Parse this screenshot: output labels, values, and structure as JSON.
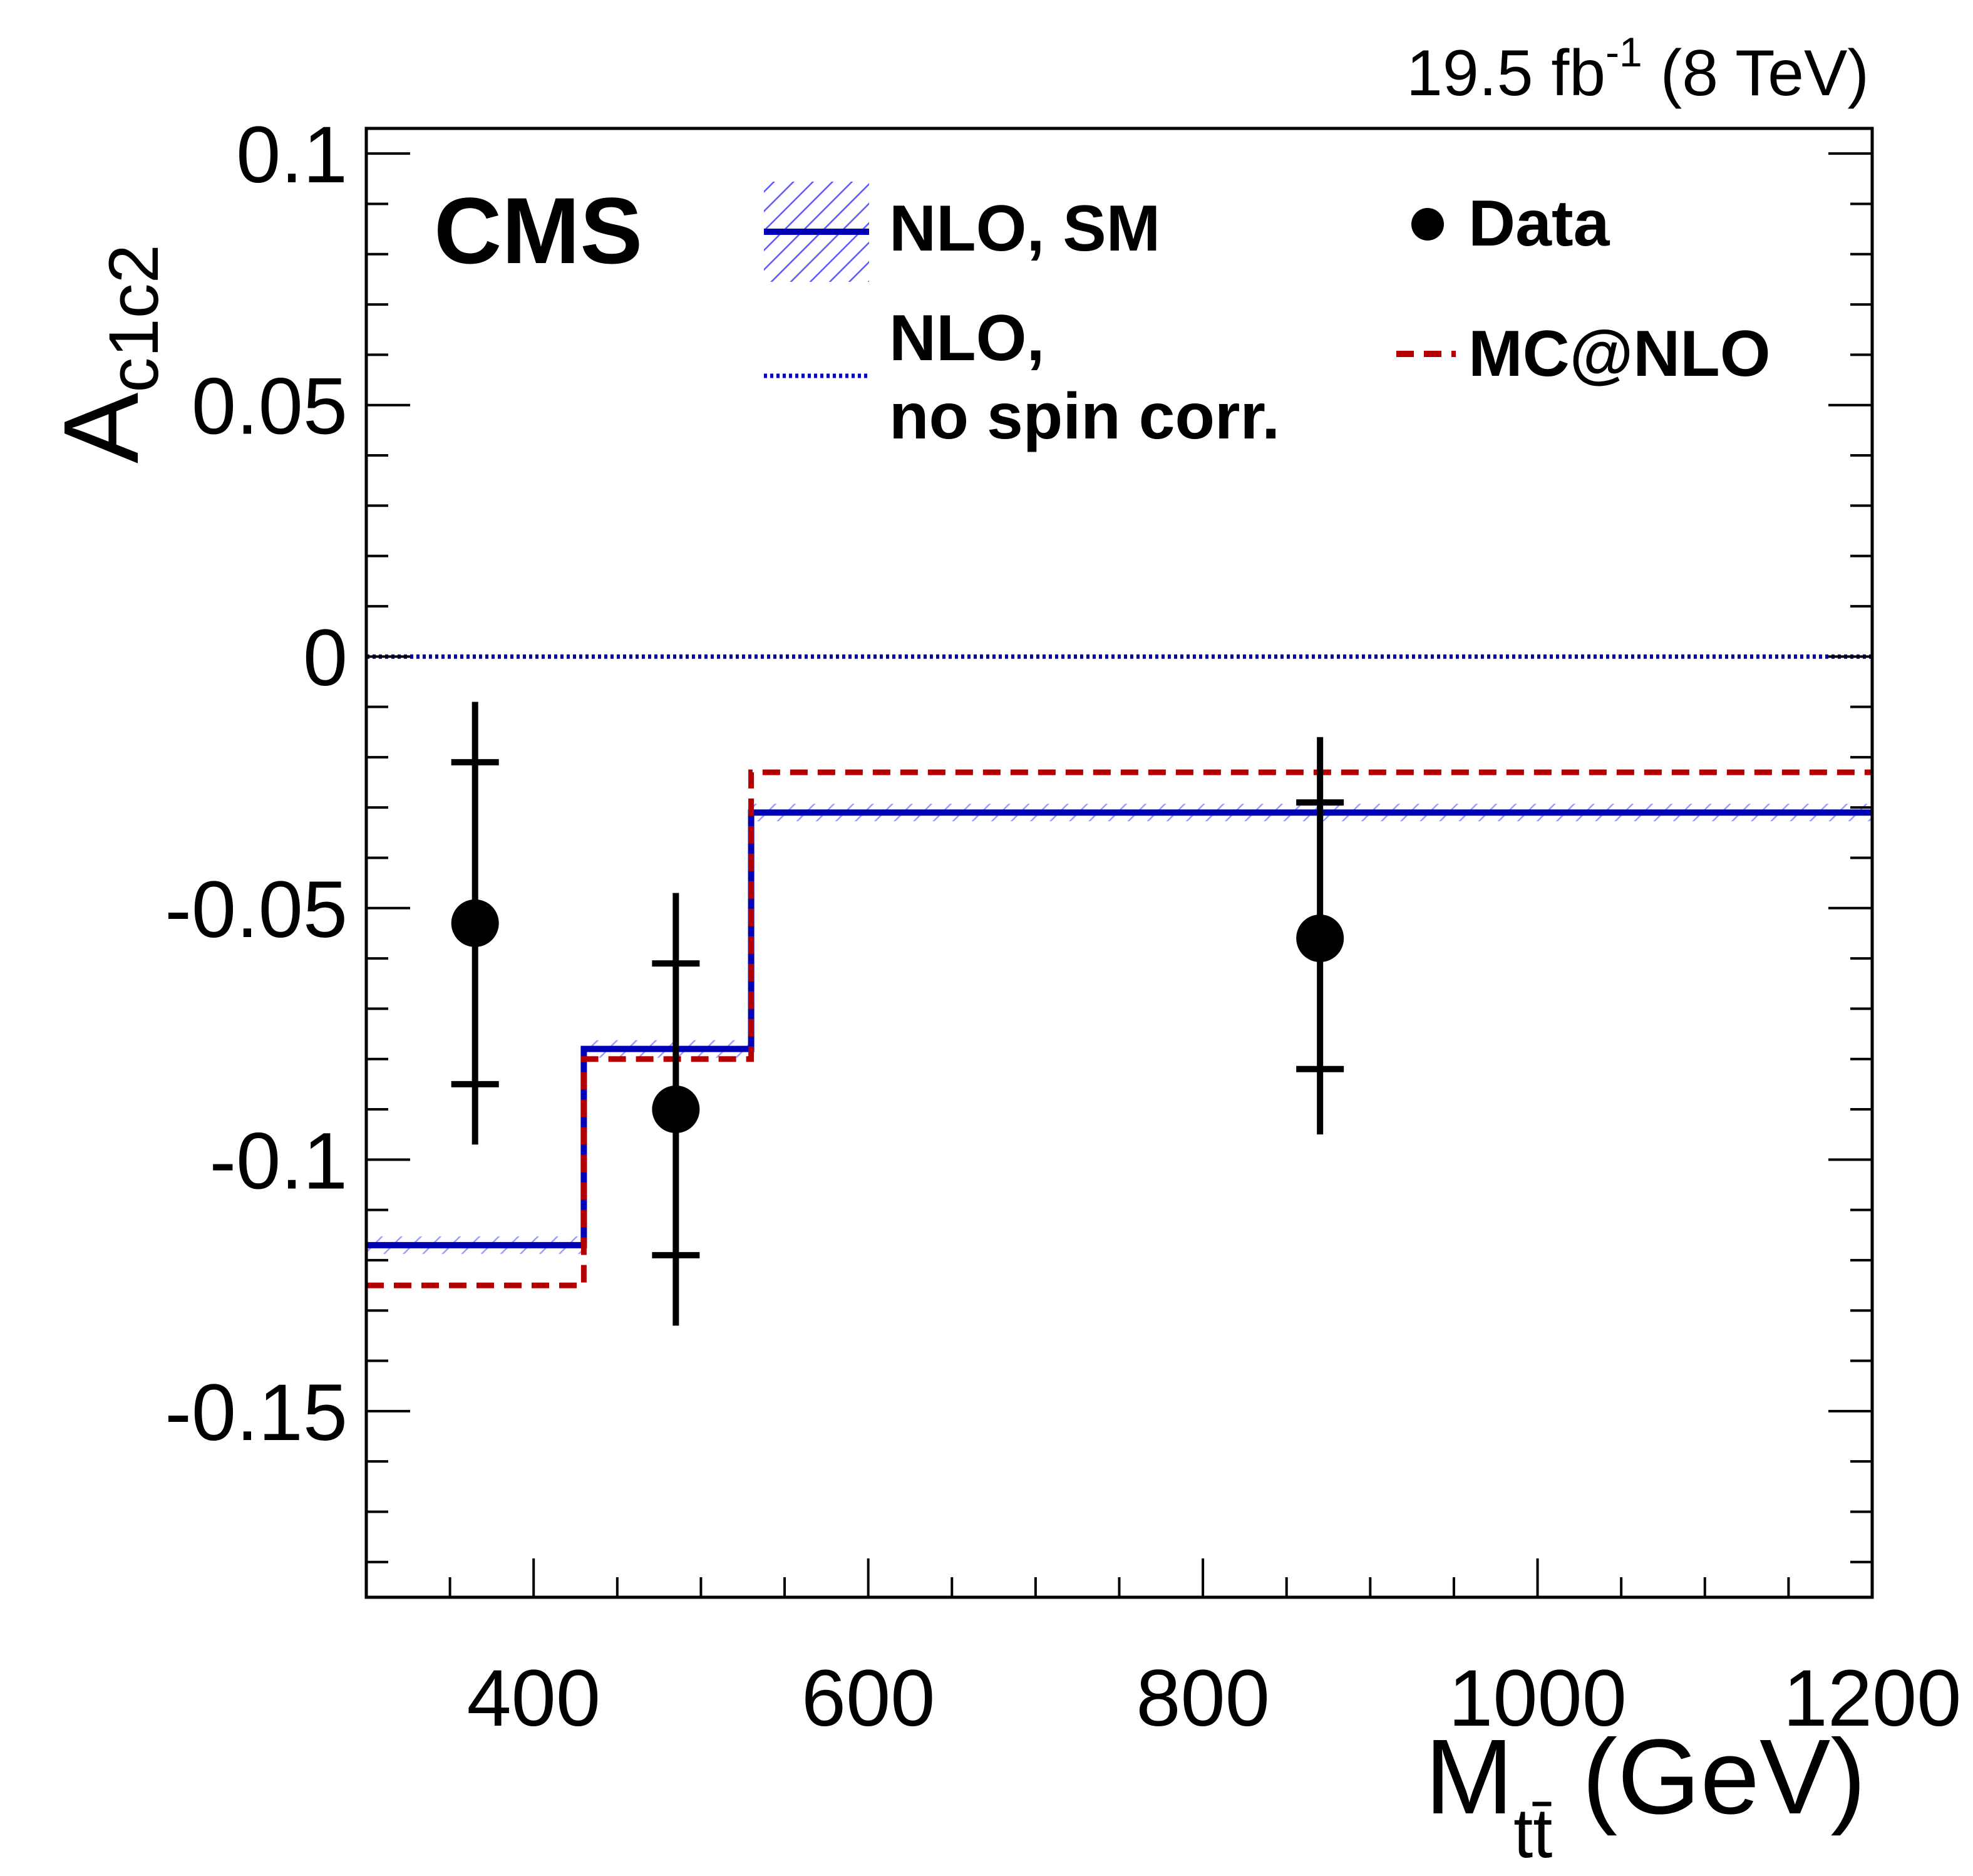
{
  "lumi": {
    "value": "19.5 fb",
    "sup": "-1",
    "energy": " (8 TeV)"
  },
  "experiment": "CMS",
  "chart_data": {
    "type": "step-with-points",
    "xlabel": {
      "main": "M",
      "sub": "tt̄",
      "unit": " (GeV)"
    },
    "ylabel": {
      "main": "A",
      "sub": "c1c2"
    },
    "xlim": [
      300,
      1200
    ],
    "ylim": [
      -0.187,
      0.105
    ],
    "x_ticks": [
      400,
      600,
      800,
      1000,
      1200
    ],
    "x_tick_labels": [
      "400",
      "600",
      "800",
      "1000",
      "1200"
    ],
    "y_ticks": [
      0.1,
      0.05,
      0,
      -0.05,
      -0.1,
      -0.15
    ],
    "y_tick_labels": [
      "0.1",
      "0.05",
      "0",
      "-0.05",
      "-0.1",
      "-0.15"
    ],
    "bin_edges": [
      300,
      430,
      530,
      1200
    ],
    "series": [
      {
        "name": "NLO, SM",
        "style": "solid",
        "color": "#0000b4",
        "values": [
          -0.117,
          -0.078,
          -0.031
        ]
      },
      {
        "name": "NLO, no spin corr.",
        "style": "dotted",
        "color": "#0000b4",
        "values": [
          0,
          0,
          0
        ]
      },
      {
        "name": "MC@NLO",
        "style": "dashed",
        "color": "#b40000",
        "values": [
          -0.125,
          -0.08,
          -0.023
        ]
      }
    ],
    "data_points": {
      "name": "Data",
      "x": [
        365,
        485,
        870
      ],
      "y": [
        -0.053,
        -0.09,
        -0.056
      ],
      "stat_lo": [
        -0.085,
        -0.119,
        -0.082
      ],
      "stat_hi": [
        -0.021,
        -0.061,
        -0.029
      ],
      "tot_lo": [
        -0.097,
        -0.133,
        -0.095
      ],
      "tot_hi": [
        -0.009,
        -0.047,
        -0.016
      ]
    }
  },
  "legend": {
    "nlo_sm": "NLO, SM",
    "nlo_nospin_line1": "NLO,",
    "nlo_nospin_line2": "no spin corr.",
    "data": "Data",
    "mcatnlo": "MC@NLO"
  }
}
